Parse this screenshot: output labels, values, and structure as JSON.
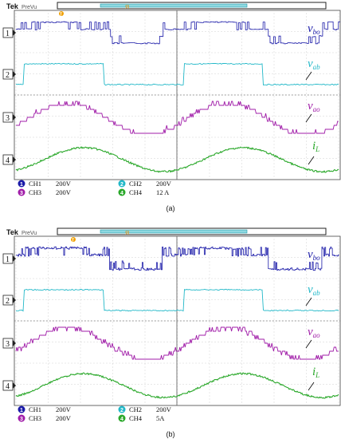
{
  "scope": {
    "brand": "Tek",
    "mode": "PreVu",
    "trigger_marker": "T",
    "position_marker": "Я"
  },
  "colors": {
    "ch1": "#1a1aa8",
    "ch2": "#22b8c8",
    "ch3": "#a01ca8",
    "ch4": "#2aa82a",
    "grid": "#9a9a9a",
    "trigger": "#e08a00"
  },
  "panels": [
    {
      "caption": "(a)",
      "channel_labels": [
        {
          "number": "1",
          "text": "CH1",
          "scale": "200V"
        },
        {
          "number": "2",
          "text": "CH2",
          "scale": "200V"
        },
        {
          "number": "3",
          "text": "CH3",
          "scale": "200V"
        },
        {
          "number": "4",
          "text": "CH4",
          "scale": "12 A"
        }
      ]
    },
    {
      "caption": "(b)",
      "channel_labels": [
        {
          "number": "1",
          "text": "CH1",
          "scale": "200V"
        },
        {
          "number": "2",
          "text": "CH2",
          "scale": "200V"
        },
        {
          "number": "3",
          "text": "CH3",
          "scale": "200V"
        },
        {
          "number": "4",
          "text": "CH4",
          "scale": "5A"
        }
      ]
    }
  ],
  "chart_data": [
    {
      "type": "line",
      "title": "(a)",
      "series": [
        {
          "name": "v_bo",
          "channel": 1,
          "shape": "pwm-stepped",
          "periods": 2
        },
        {
          "name": "v_ab",
          "channel": 2,
          "shape": "square",
          "periods": 2
        },
        {
          "name": "v_ao",
          "channel": 3,
          "shape": "multilevel-stepped-sine",
          "periods": 2
        },
        {
          "name": "i_L",
          "channel": 4,
          "shape": "sine-with-ripple",
          "periods": 2
        }
      ]
    },
    {
      "type": "line",
      "title": "(b)",
      "series": [
        {
          "name": "v_bo",
          "channel": 1,
          "shape": "pwm-stepped",
          "periods": 2
        },
        {
          "name": "v_ab",
          "channel": 2,
          "shape": "square",
          "periods": 2
        },
        {
          "name": "v_ao",
          "channel": 3,
          "shape": "multilevel-stepped-sine",
          "periods": 2
        },
        {
          "name": "i_L",
          "channel": 4,
          "shape": "sine-with-ripple",
          "periods": 2
        }
      ]
    }
  ]
}
